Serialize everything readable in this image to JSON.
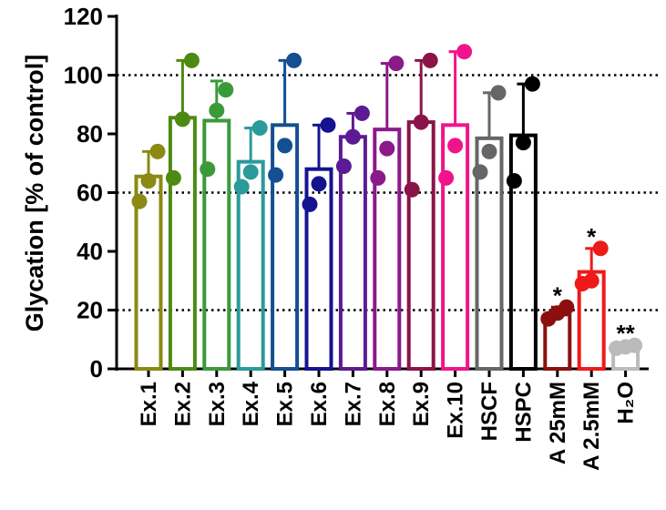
{
  "chart_data": {
    "type": "bar",
    "title": "",
    "xlabel": "",
    "ylabel": "Glycation [% of control]",
    "ylim": [
      0,
      120
    ],
    "yticks": [
      0,
      20,
      40,
      60,
      80,
      100,
      120
    ],
    "reference_lines": [
      20,
      60,
      100
    ],
    "categories": [
      "Ex.1",
      "Ex.2",
      "Ex.3",
      "Ex.4",
      "Ex.5",
      "Ex.6",
      "Ex.7",
      "Ex.8",
      "Ex.9",
      "Ex.10",
      "HSCF",
      "HSPC",
      "A 25mM",
      "A 2.5mM",
      "H₂O"
    ],
    "values": [
      65.5,
      85.5,
      84.5,
      70.5,
      83,
      68,
      79,
      81.5,
      84,
      83,
      78.5,
      79.5,
      18.5,
      33,
      7
    ],
    "error_upper": [
      74,
      105,
      98,
      82,
      105,
      83,
      87,
      104,
      105,
      108,
      94,
      97,
      21,
      41,
      8
    ],
    "points": [
      [
        57,
        64,
        74
      ],
      [
        65,
        85,
        105
      ],
      [
        68,
        88,
        95
      ],
      [
        62,
        67,
        82
      ],
      [
        66,
        76,
        105
      ],
      [
        56,
        63,
        83
      ],
      [
        69,
        79,
        87
      ],
      [
        65,
        75,
        104
      ],
      [
        61,
        84,
        105
      ],
      [
        65,
        76,
        108
      ],
      [
        67,
        74,
        94
      ],
      [
        64,
        77,
        97
      ],
      [
        17,
        19,
        21
      ],
      [
        29,
        30,
        41
      ],
      [
        7,
        7.5,
        8
      ]
    ],
    "colors": [
      "#8a8a14",
      "#4d8a12",
      "#3a9a3a",
      "#2b9a9a",
      "#144f90",
      "#141490",
      "#5c1a94",
      "#8a1a8a",
      "#8a1448",
      "#f0148c",
      "#666666",
      "#000000",
      "#8c0f0f",
      "#ee1a1a",
      "#bbbbbb"
    ],
    "annotations": [
      "",
      "",
      "",
      "",
      "",
      "",
      "",
      "",
      "",
      "",
      "",
      "",
      "*",
      "*",
      "**"
    ]
  }
}
